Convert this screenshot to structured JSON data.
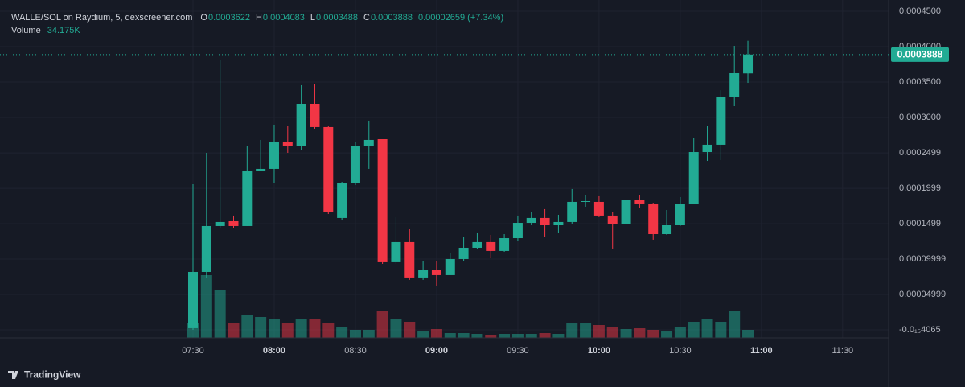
{
  "chart_data": {
    "type": "candlestick",
    "title": "WALLE/SOL on Raydium, 5, dexscreener.com",
    "header": {
      "open_label": "O",
      "high_label": "H",
      "low_label": "L",
      "close_label": "C",
      "change": "0.00002659 (+7.34%)",
      "volume_title": "Volume",
      "volume_value": "34.175K"
    },
    "branding": "TradingView",
    "categories": [
      "07:30",
      null,
      null,
      null,
      null,
      null,
      "08:00",
      null,
      null,
      null,
      null,
      null,
      "08:30",
      null,
      null,
      null,
      null,
      null,
      "09:00",
      null,
      null,
      null,
      null,
      null,
      "09:30",
      null,
      null,
      null,
      null,
      null,
      "10:00",
      null,
      null,
      null,
      null,
      null,
      "10:30",
      null,
      null,
      null,
      null,
      null,
      "11:00",
      null,
      null,
      null,
      null,
      null,
      "11:30"
    ],
    "open": [
      2.3e-06,
      8.18e-05,
      0.0001466,
      0.0001534,
      0.0001466,
      0.000225,
      0.0002273,
      0.0002659,
      0.0002591,
      0.0003193,
      0.0002864,
      0.000158,
      0.0002068,
      0.0002602,
      0.0002693,
      9.55e-05,
      0.0001239,
      7.39e-05,
      8.52e-05,
      7.73e-05,
      0.0001,
      0.0001159,
      0.0001239,
      0.0001114,
      0.0001295,
      0.0001511,
      0.000158,
      0.0001477,
      0.0001523,
      0.0001807,
      0.0001807,
      0.0001614,
      0.0001489,
      0.000183,
      0.0001784,
      0.0001352,
      0.0001477,
      0.0001773,
      0.0002511,
      0.0002614,
      0.0003284,
      0.0003622,
      null,
      null,
      null,
      null,
      null,
      null,
      null
    ],
    "high": [
      0.0002057,
      0.00025,
      0.0003807,
      0.0001614,
      0.0002591,
      0.0002682,
      0.0002898,
      0.0002875,
      0.0003455,
      0.0003466,
      0.0002875,
      0.0002091,
      0.0002659,
      0.0002955,
      0.0002693,
      0.0001591,
      0.000142,
      9.66e-05,
      9.66e-05,
      0.0001091,
      0.0001318,
      0.0001375,
      0.0001341,
      0.0001352,
      0.0001614,
      0.0001659,
      0.0001705,
      0.0001625,
      0.0001989,
      0.0001909,
      0.0001898,
      0.000167,
      0.0001841,
      0.0001909,
      0.0001795,
      0.0001693,
      0.0001875,
      0.0002705,
      0.0002875,
      0.0003384,
      0.0004011,
      0.0004083,
      null,
      null,
      null,
      null,
      null,
      null,
      null
    ],
    "low": [
      0,
      7.39e-05,
      0.0001443,
      0.0001443,
      0.0001466,
      0.000225,
      0.0002068,
      0.00025,
      0.0002545,
      0.0002841,
      0.0001636,
      0.0001545,
      0.0002045,
      0.0002273,
      9.32e-05,
      9.32e-05,
      7.05e-05,
      7.05e-05,
      6.25e-05,
      7.73e-05,
      9.77e-05,
      0.0001136,
      0.0001011,
      0.0001102,
      0.000125,
      0.0001477,
      0.0001318,
      0.0001364,
      0.00015,
      0.0001739,
      0.0001591,
      0.0001148,
      0.0001489,
      0.0001727,
      0.0001273,
      0.0001341,
      0.0001466,
      0.0001773,
      0.0002386,
      0.0002398,
      0.0003159,
      0.0003488,
      null,
      null,
      null,
      null,
      null,
      null,
      null
    ],
    "close": [
      8.18e-05,
      0.0001466,
      0.0001523,
      0.0001466,
      0.000225,
      0.0002273,
      0.0002659,
      0.0002591,
      0.0003193,
      0.0002864,
      0.0001659,
      0.0002068,
      0.0002602,
      0.0002682,
      9.55e-05,
      0.0001239,
      7.39e-05,
      8.52e-05,
      7.73e-05,
      0.0001,
      0.0001159,
      0.0001239,
      0.0001114,
      0.0001295,
      0.0001511,
      0.000158,
      0.0001477,
      0.0001523,
      0.0001807,
      0.0001818,
      0.0001614,
      0.0001489,
      0.000183,
      0.0001784,
      0.0001352,
      0.0001477,
      0.0001773,
      0.0002511,
      0.0002614,
      0.0003284,
      0.0003625,
      0.0003888,
      null,
      null,
      null,
      null,
      null,
      null,
      null
    ],
    "volume": [
      61500,
      266600,
      205000,
      61500,
      99100,
      88900,
      78600,
      61500,
      82000,
      82000,
      61500,
      47800,
      34200,
      34200,
      112800,
      78600,
      68400,
      27300,
      37600,
      20500,
      20500,
      17100,
      13700,
      17100,
      17100,
      17100,
      20500,
      17100,
      61500,
      61500,
      54700,
      47800,
      37600,
      41000,
      34200,
      27300,
      47800,
      68400,
      78600,
      68400,
      116200,
      34175,
      null,
      null,
      null,
      null,
      null,
      null,
      null
    ],
    "ylim": [
      -1.14e-05,
      0.0004659
    ],
    "yticks": [
      {
        "value": 0.00045,
        "label": "0.0004500"
      },
      {
        "value": 0.0004,
        "label": "0.0004000"
      },
      {
        "value": 0.00035,
        "label": "0.0003500"
      },
      {
        "value": 0.0003,
        "label": "0.0003000"
      },
      {
        "value": 0.0002499,
        "label": "0.0002499"
      },
      {
        "value": 0.0001999,
        "label": "0.0001999"
      },
      {
        "value": 0.0001499,
        "label": "0.0001499"
      },
      {
        "value": 9.999e-05,
        "label": "0.00009999"
      },
      {
        "value": 4.999e-05,
        "label": "0.00004999"
      },
      {
        "value": -4.065e-16,
        "label": "-0.0₁₅4065"
      }
    ],
    "volume_ylim": [
      0,
      341750
    ],
    "up_color": "#22ab94",
    "down_color": "#f23645",
    "grid": true
  }
}
